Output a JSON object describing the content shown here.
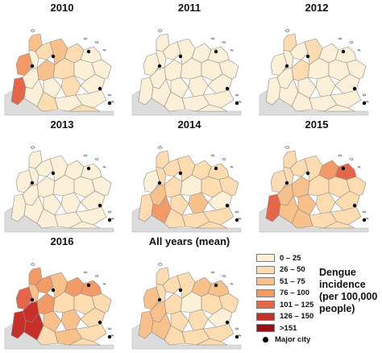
{
  "figure": {
    "panels": [
      {
        "year": "2010",
        "colors": [
          5,
          4,
          3,
          2,
          1,
          1,
          1,
          3,
          1,
          2,
          2,
          3,
          2,
          2,
          1,
          1,
          1,
          1,
          1,
          2,
          1
        ]
      },
      {
        "year": "2011",
        "colors": [
          1,
          1,
          1,
          1,
          1,
          1,
          1,
          1,
          1,
          1,
          1,
          1,
          1,
          1,
          1,
          1,
          1,
          1,
          1,
          1,
          1
        ]
      },
      {
        "year": "2012",
        "colors": [
          1,
          1,
          2,
          1,
          1,
          1,
          1,
          2,
          1,
          1,
          1,
          2,
          1,
          1,
          1,
          1,
          1,
          1,
          1,
          1,
          1
        ]
      },
      {
        "year": "2013",
        "colors": [
          1,
          1,
          1,
          1,
          1,
          1,
          1,
          1,
          1,
          1,
          1,
          1,
          1,
          1,
          1,
          1,
          1,
          1,
          1,
          1,
          1
        ]
      },
      {
        "year": "2014",
        "colors": [
          2,
          1,
          2,
          2,
          2,
          3,
          4,
          2,
          2,
          2,
          1,
          2,
          3,
          2,
          2,
          2,
          1,
          2,
          2,
          2,
          2
        ]
      },
      {
        "year": "2015",
        "colors": [
          5,
          2,
          2,
          2,
          2,
          3,
          3,
          3,
          3,
          3,
          2,
          2,
          2,
          4,
          2,
          2,
          2,
          2,
          2,
          2,
          5
        ]
      },
      {
        "year": "2016",
        "colors": [
          6,
          5,
          4,
          4,
          3,
          6,
          6,
          4,
          3,
          2,
          2,
          3,
          3,
          4,
          3,
          2,
          2,
          2,
          2,
          2,
          4
        ]
      },
      {
        "year": "All years (mean)",
        "colors": [
          3,
          3,
          2,
          2,
          2,
          3,
          3,
          2,
          2,
          2,
          1,
          2,
          2,
          3,
          2,
          2,
          1,
          2,
          2,
          2,
          3
        ]
      }
    ]
  },
  "legend": {
    "title": "Dengue incidence (per 100,000 people)",
    "classes": [
      {
        "label": "0 – 25",
        "color": "#fdf0d8"
      },
      {
        "label": "26 – 50",
        "color": "#fcdcb0"
      },
      {
        "label": "51 – 75",
        "color": "#f8c08b"
      },
      {
        "label": "76 – 100",
        "color": "#f29a68"
      },
      {
        "label": "101 – 125",
        "color": "#e5674a"
      },
      {
        "label": "126 – 150",
        "color": "#c7302a"
      },
      {
        "label": ">151",
        "color": "#9b0f18"
      }
    ],
    "city_label": "Major city"
  }
}
